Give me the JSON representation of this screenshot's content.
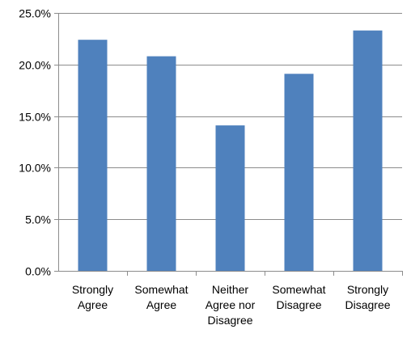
{
  "chart_data": {
    "type": "bar",
    "categories": [
      [
        "Strongly",
        "Agree"
      ],
      [
        "Somewhat",
        "Agree"
      ],
      [
        "Neither",
        "Agree nor",
        "Disagree"
      ],
      [
        "Somewhat",
        "Disagree"
      ],
      [
        "Strongly",
        "Disagree"
      ]
    ],
    "values": [
      22.4,
      20.8,
      14.1,
      19.1,
      23.3
    ],
    "ylim": [
      0,
      25
    ],
    "yticks": [
      "0.0%",
      "5.0%",
      "10.0%",
      "15.0%",
      "20.0%",
      "25.0%"
    ],
    "ytick_values": [
      0,
      5,
      10,
      15,
      20,
      25
    ],
    "grid": true,
    "legend": "none",
    "title": "",
    "xlabel": "",
    "ylabel": "",
    "colors": {
      "bar": "#4F81BD",
      "grid": "#8C8C8C",
      "axis": "#8C8C8C"
    }
  }
}
